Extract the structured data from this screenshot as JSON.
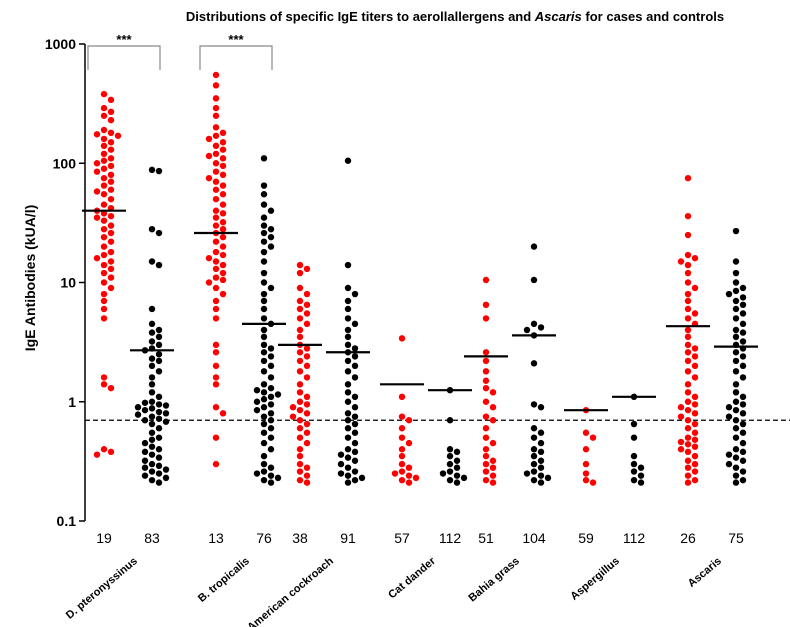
{
  "chart_data": {
    "type": "scatter",
    "title": "Distributions of specific IgE titers to aerollallergens and Ascaris for cases and controls",
    "title_parts": [
      {
        "text": "Distributions of specific IgE titers to aerollallergens and ",
        "italic": false
      },
      {
        "text": "Ascaris",
        "italic": true
      },
      {
        "text": " for cases and controls",
        "italic": false
      }
    ],
    "ylabel": "IgE Antibodies (kUA/l)",
    "yscale": "log",
    "ylim": [
      0.1,
      1000
    ],
    "yticks": [
      "0.1",
      "1",
      "10",
      "100",
      "1000"
    ],
    "threshold_line": 0.7,
    "categories": [
      "D. pteronyssinus",
      "B. tropicalis",
      "American cockroach",
      "Cat dander",
      "Bahia grass",
      "Aspergillus",
      "Ascaris"
    ],
    "colors": {
      "cases": "#ff0000",
      "controls": "#000000"
    },
    "significance": [
      {
        "group": "D. pteronyssinus",
        "label": "***"
      },
      {
        "group": "B. tropicalis",
        "label": "***"
      }
    ],
    "groups": [
      {
        "category": "D. pteronyssinus",
        "cases": {
          "count": "19",
          "median": 40,
          "points": [
            380,
            340,
            290,
            270,
            250,
            230,
            190,
            180,
            175,
            170,
            160,
            150,
            140,
            130,
            120,
            110,
            105,
            100,
            95,
            90,
            85,
            80,
            75,
            70,
            65,
            60,
            58,
            55,
            50,
            45,
            42,
            40,
            38,
            36,
            35,
            33,
            30,
            28,
            26,
            24,
            22,
            20,
            18,
            17,
            16,
            15,
            14,
            13,
            12,
            11,
            10,
            9,
            8,
            7,
            6,
            5,
            1.6,
            1.4,
            1.3,
            0.4,
            0.38,
            0.36
          ]
        },
        "controls": {
          "count": "83",
          "median": 2.7,
          "points": [
            88,
            86,
            28,
            26,
            15,
            14,
            6,
            4.5,
            4,
            3.8,
            3.5,
            3.2,
            3,
            2.8,
            2.7,
            2.5,
            2.3,
            2.2,
            2,
            1.8,
            1.6,
            1.4,
            1.2,
            1.1,
            1,
            0.98,
            0.95,
            0.93,
            0.9,
            0.88,
            0.85,
            0.82,
            0.8,
            0.78,
            0.75,
            0.72,
            0.7,
            0.68,
            0.65,
            0.6,
            0.55,
            0.5,
            0.48,
            0.45,
            0.42,
            0.4,
            0.38,
            0.36,
            0.34,
            0.32,
            0.3,
            0.29,
            0.28,
            0.27,
            0.26,
            0.25,
            0.24,
            0.23,
            0.22,
            0.21
          ]
        }
      },
      {
        "category": "B. tropicalis",
        "cases": {
          "count": "13",
          "median": 26,
          "points": [
            550,
            450,
            350,
            290,
            250,
            200,
            180,
            170,
            160,
            150,
            140,
            130,
            120,
            115,
            110,
            100,
            95,
            85,
            80,
            75,
            70,
            65,
            60,
            55,
            50,
            45,
            40,
            38,
            35,
            32,
            30,
            28,
            26,
            24,
            22,
            20,
            18,
            17,
            16,
            15,
            14,
            13,
            12,
            11,
            10.5,
            10,
            9,
            8,
            7,
            6,
            5,
            3,
            2.6,
            2,
            1.6,
            1.4,
            0.9,
            0.8,
            0.5,
            0.3
          ]
        },
        "controls": {
          "count": "76",
          "median": 4.5,
          "points": [
            110,
            65,
            55,
            45,
            40,
            35,
            30,
            28,
            26,
            24,
            22,
            20,
            18,
            15,
            12,
            10,
            9,
            8,
            7,
            6,
            5,
            4.5,
            4,
            3.5,
            3,
            2.8,
            2.6,
            2.4,
            2.2,
            2,
            1.8,
            1.6,
            1.4,
            1.3,
            1.25,
            1.2,
            1.15,
            1.1,
            1.05,
            1,
            0.95,
            0.9,
            0.85,
            0.8,
            0.75,
            0.7,
            0.65,
            0.6,
            0.55,
            0.5,
            0.45,
            0.4,
            0.35,
            0.3,
            0.28,
            0.26,
            0.25,
            0.24,
            0.23,
            0.22,
            0.21
          ]
        }
      },
      {
        "category": "American cockroach",
        "cases": {
          "count": "38",
          "median": 3,
          "points": [
            14,
            13,
            12,
            9,
            8,
            7,
            6.5,
            6,
            5.5,
            5,
            4.5,
            4,
            3.5,
            3,
            2.8,
            2.6,
            2.4,
            2.2,
            2,
            1.8,
            1.6,
            1.4,
            1.2,
            1.1,
            1,
            0.95,
            0.9,
            0.85,
            0.8,
            0.75,
            0.7,
            0.65,
            0.6,
            0.55,
            0.5,
            0.45,
            0.4,
            0.35,
            0.3,
            0.28,
            0.26,
            0.24,
            0.22,
            0.21
          ]
        },
        "controls": {
          "count": "91",
          "median": 2.6,
          "points": [
            105,
            14,
            9,
            8,
            7,
            6,
            5,
            4.5,
            4,
            3.5,
            3,
            2.8,
            2.6,
            2.4,
            2.2,
            2,
            1.8,
            1.6,
            1.4,
            1.2,
            1.1,
            1,
            0.9,
            0.8,
            0.75,
            0.7,
            0.65,
            0.6,
            0.55,
            0.5,
            0.45,
            0.4,
            0.38,
            0.36,
            0.34,
            0.32,
            0.3,
            0.28,
            0.26,
            0.25,
            0.24,
            0.23,
            0.22,
            0.21
          ]
        }
      },
      {
        "category": "Cat dander",
        "cases": {
          "count": "57",
          "median": 1.4,
          "points": [
            3.4,
            1.1,
            0.75,
            0.7,
            0.6,
            0.5,
            0.45,
            0.4,
            0.35,
            0.3,
            0.28,
            0.26,
            0.25,
            0.24,
            0.23,
            0.22,
            0.21
          ]
        },
        "controls": {
          "count": "112",
          "median": 1.25,
          "points": [
            1.25,
            0.7,
            0.4,
            0.38,
            0.35,
            0.32,
            0.3,
            0.28,
            0.26,
            0.25,
            0.24,
            0.23,
            0.22,
            0.21
          ]
        }
      },
      {
        "category": "Bahia grass",
        "cases": {
          "count": "51",
          "median": 2.4,
          "points": [
            10.5,
            6.5,
            5,
            2.6,
            2.2,
            1.8,
            1.5,
            1.3,
            1.2,
            1,
            0.9,
            0.75,
            0.7,
            0.6,
            0.5,
            0.45,
            0.4,
            0.35,
            0.32,
            0.3,
            0.28,
            0.26,
            0.24,
            0.22,
            0.21
          ]
        },
        "controls": {
          "count": "104",
          "median": 3.6,
          "points": [
            20,
            10.5,
            4.5,
            4.2,
            4,
            3.6,
            2.1,
            0.95,
            0.9,
            0.6,
            0.55,
            0.5,
            0.45,
            0.4,
            0.38,
            0.35,
            0.32,
            0.3,
            0.28,
            0.26,
            0.25,
            0.24,
            0.23,
            0.22,
            0.21
          ]
        }
      },
      {
        "category": "Aspergillus",
        "cases": {
          "count": "59",
          "median": 0.85,
          "points": [
            0.85,
            0.55,
            0.5,
            0.4,
            0.3,
            0.25,
            0.22,
            0.21
          ]
        },
        "controls": {
          "count": "112",
          "median": 1.1,
          "points": [
            1.1,
            0.65,
            0.5,
            0.35,
            0.3,
            0.28,
            0.26,
            0.24,
            0.22,
            0.21
          ]
        }
      },
      {
        "category": "Ascaris",
        "cases": {
          "count": "26",
          "median": 4.3,
          "points": [
            75,
            36,
            25,
            17,
            16,
            15,
            14,
            12,
            10,
            9,
            8,
            7,
            6,
            5.5,
            5,
            4.5,
            4,
            3.5,
            3,
            2.8,
            2.6,
            2.4,
            2.2,
            2,
            1.8,
            1.6,
            1.4,
            1.2,
            1.1,
            1,
            0.95,
            0.9,
            0.85,
            0.8,
            0.75,
            0.7,
            0.65,
            0.6,
            0.55,
            0.5,
            0.48,
            0.46,
            0.44,
            0.42,
            0.4,
            0.38,
            0.35,
            0.32,
            0.3,
            0.28,
            0.26,
            0.24,
            0.22,
            0.21
          ]
        },
        "controls": {
          "count": "75",
          "median": 2.9,
          "points": [
            27,
            15,
            12,
            10,
            9,
            8.5,
            8,
            7.5,
            7,
            6.5,
            6,
            5.5,
            5,
            4.5,
            4,
            3.8,
            3.5,
            3.2,
            3,
            2.8,
            2.6,
            2.4,
            2.2,
            2,
            1.8,
            1.6,
            1.4,
            1.2,
            1.1,
            1,
            0.95,
            0.9,
            0.85,
            0.8,
            0.75,
            0.7,
            0.65,
            0.6,
            0.55,
            0.5,
            0.45,
            0.4,
            0.38,
            0.36,
            0.34,
            0.32,
            0.3,
            0.28,
            0.26,
            0.24,
            0.22,
            0.21
          ]
        }
      }
    ]
  }
}
